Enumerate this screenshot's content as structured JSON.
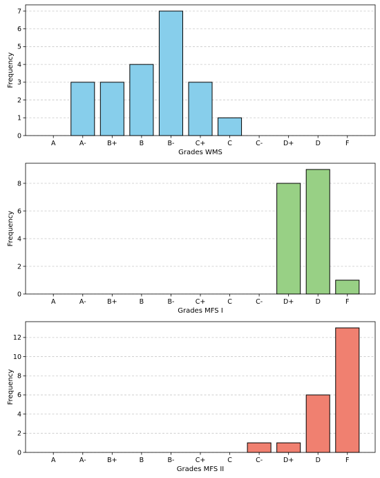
{
  "chart_data": [
    {
      "type": "bar",
      "categories": [
        "A",
        "A-",
        "B+",
        "B",
        "B-",
        "C+",
        "C",
        "C-",
        "D+",
        "D",
        "F"
      ],
      "values": [
        0,
        3,
        3,
        4,
        7,
        3,
        1,
        0,
        0,
        0,
        0
      ],
      "xlabel": "Grades WMS",
      "ylabel": "Frequency",
      "ylim": [
        0,
        7.35
      ],
      "yticks": [
        0,
        1,
        2,
        3,
        4,
        5,
        6,
        7
      ],
      "grid": "y-dashed",
      "bar_color": "#87CEEB"
    },
    {
      "type": "bar",
      "categories": [
        "A",
        "A-",
        "B+",
        "B",
        "B-",
        "C+",
        "C",
        "C-",
        "D+",
        "D",
        "F"
      ],
      "values": [
        0,
        0,
        0,
        0,
        0,
        0,
        0,
        0,
        8,
        9,
        1
      ],
      "xlabel": "Grades MFS I",
      "ylabel": "Frequency",
      "ylim": [
        0,
        9.45
      ],
      "yticks": [
        0,
        2,
        4,
        6,
        8
      ],
      "grid": "y-dashed",
      "bar_color": "#98D085"
    },
    {
      "type": "bar",
      "categories": [
        "A",
        "A-",
        "B+",
        "B",
        "B-",
        "C+",
        "C",
        "C-",
        "D+",
        "D",
        "F"
      ],
      "values": [
        0,
        0,
        0,
        0,
        0,
        0,
        0,
        1,
        1,
        6,
        13
      ],
      "xlabel": "Grades MFS II",
      "ylabel": "Frequency",
      "ylim": [
        0,
        13.65
      ],
      "yticks": [
        0,
        2,
        4,
        6,
        8,
        10,
        12
      ],
      "grid": "y-dashed",
      "bar_color": "#F08070"
    }
  ]
}
